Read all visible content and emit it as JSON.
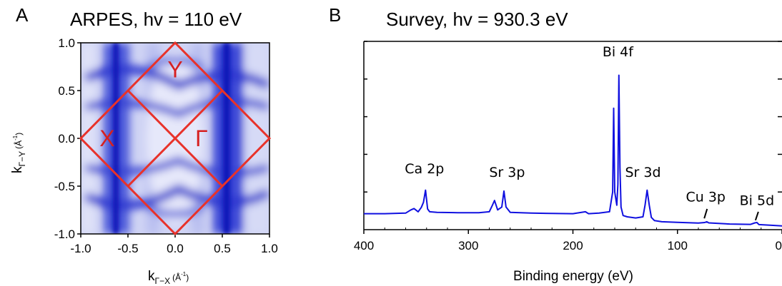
{
  "chart_data": [
    {
      "panel": "A",
      "type": "heatmap",
      "title": "ARPES, hv = 110 eV",
      "xlabel": "k",
      "xlabel_sub": "Γ−X",
      "xlabel_unit": "(Å",
      "xlabel_unit_sup": "-1",
      "xlabel_unit_close": ")",
      "ylabel": "k",
      "ylabel_sub": "Γ−Y",
      "ylabel_unit": "(Å",
      "ylabel_unit_sup": "-1",
      "ylabel_unit_close": ")",
      "xlim": [
        -1.0,
        1.0
      ],
      "ylim": [
        -1.0,
        1.0
      ],
      "xticks": [
        "-1.0",
        "-0.5",
        "0.0",
        "0.5",
        "1.0"
      ],
      "xtick_values": [
        -1.0,
        -0.5,
        0.0,
        0.5,
        1.0
      ],
      "yticks": [
        "1.0",
        "0.5",
        "0.0",
        "-0.5",
        "-1.0"
      ],
      "ytick_values": [
        1.0,
        0.5,
        0.0,
        -0.5,
        -1.0
      ],
      "colormap": [
        "#ffffff",
        "#0a1ed2"
      ],
      "overlay_color": "#e8322a",
      "brillouin_zone": {
        "outer": [
          [
            0,
            1
          ],
          [
            1,
            0
          ],
          [
            0,
            -1
          ],
          [
            -1,
            0
          ]
        ],
        "inner_lines": [
          [
            [
              -0.5,
              0.5
            ],
            [
              0.5,
              -0.5
            ]
          ],
          [
            [
              -0.5,
              -0.5
            ],
            [
              0.5,
              0.5
            ]
          ]
        ]
      },
      "annotations": [
        {
          "text": "Y",
          "x": 0.0,
          "y": 0.72
        },
        {
          "text": "X",
          "x": -0.72,
          "y": 0.0
        },
        {
          "text": "Γ",
          "x": 0.28,
          "y": 0.0
        }
      ]
    },
    {
      "panel": "B",
      "type": "line",
      "title": "Survey, hv = 930.3 eV",
      "xlabel": "Binding energy (eV)",
      "ylabel": "",
      "xlim": [
        400,
        0
      ],
      "ylim": [
        0,
        100
      ],
      "xticks": [
        "400",
        "300",
        "200",
        "100",
        "0"
      ],
      "xtick_values": [
        400,
        300,
        200,
        100,
        0
      ],
      "line_color": "#1010e0",
      "series": [
        {
          "x": [
            400,
            380,
            360,
            355,
            352,
            348,
            345,
            343,
            341,
            339,
            337,
            330,
            310,
            290,
            280,
            277,
            275,
            272,
            268,
            266,
            264,
            260,
            240,
            220,
            200,
            188,
            185,
            175,
            165,
            162,
            161,
            160,
            158,
            157,
            156,
            155,
            154,
            152,
            148,
            140,
            133,
            131,
            129,
            127,
            125,
            122,
            115,
            100,
            80,
            74,
            72,
            70,
            50,
            30,
            26,
            24,
            22,
            10,
            0
          ],
          "y": [
            8.5,
            8.5,
            8.8,
            10.5,
            11.2,
            9.5,
            11.8,
            14.5,
            21,
            11,
            9.5,
            9.2,
            9.0,
            9.0,
            9.5,
            13,
            15.5,
            10.5,
            12,
            20.5,
            12,
            9.2,
            8.8,
            8.6,
            8.5,
            9.5,
            8.5,
            8.8,
            9.5,
            20,
            64.5,
            20,
            13,
            24,
            82,
            33,
            12,
            7.5,
            6.8,
            6.2,
            6.8,
            13,
            21,
            13,
            6.5,
            4.8,
            4.2,
            3.9,
            3.5,
            3.8,
            4.2,
            3.6,
            3.0,
            2.8,
            3.6,
            3.8,
            2.7,
            2.3,
            2.0
          ]
        }
      ],
      "annotations": [
        {
          "text": "Bi 4f",
          "x": 157,
          "y": 92
        },
        {
          "text": "Ca 2p",
          "x": 342,
          "y": 30
        },
        {
          "text": "Sr 3p",
          "x": 263,
          "y": 28
        },
        {
          "text": "Sr 3d",
          "x": 133,
          "y": 28
        },
        {
          "text": "Cu 3p",
          "x": 73,
          "y": 15
        },
        {
          "text": "Bi 5d",
          "x": 24,
          "y": 13
        }
      ],
      "pointer_ticks": [
        {
          "x": 73,
          "y_from": 11,
          "y_to": 6
        },
        {
          "x": 24,
          "y_from": 9.5,
          "y_to": 5
        }
      ]
    }
  ]
}
